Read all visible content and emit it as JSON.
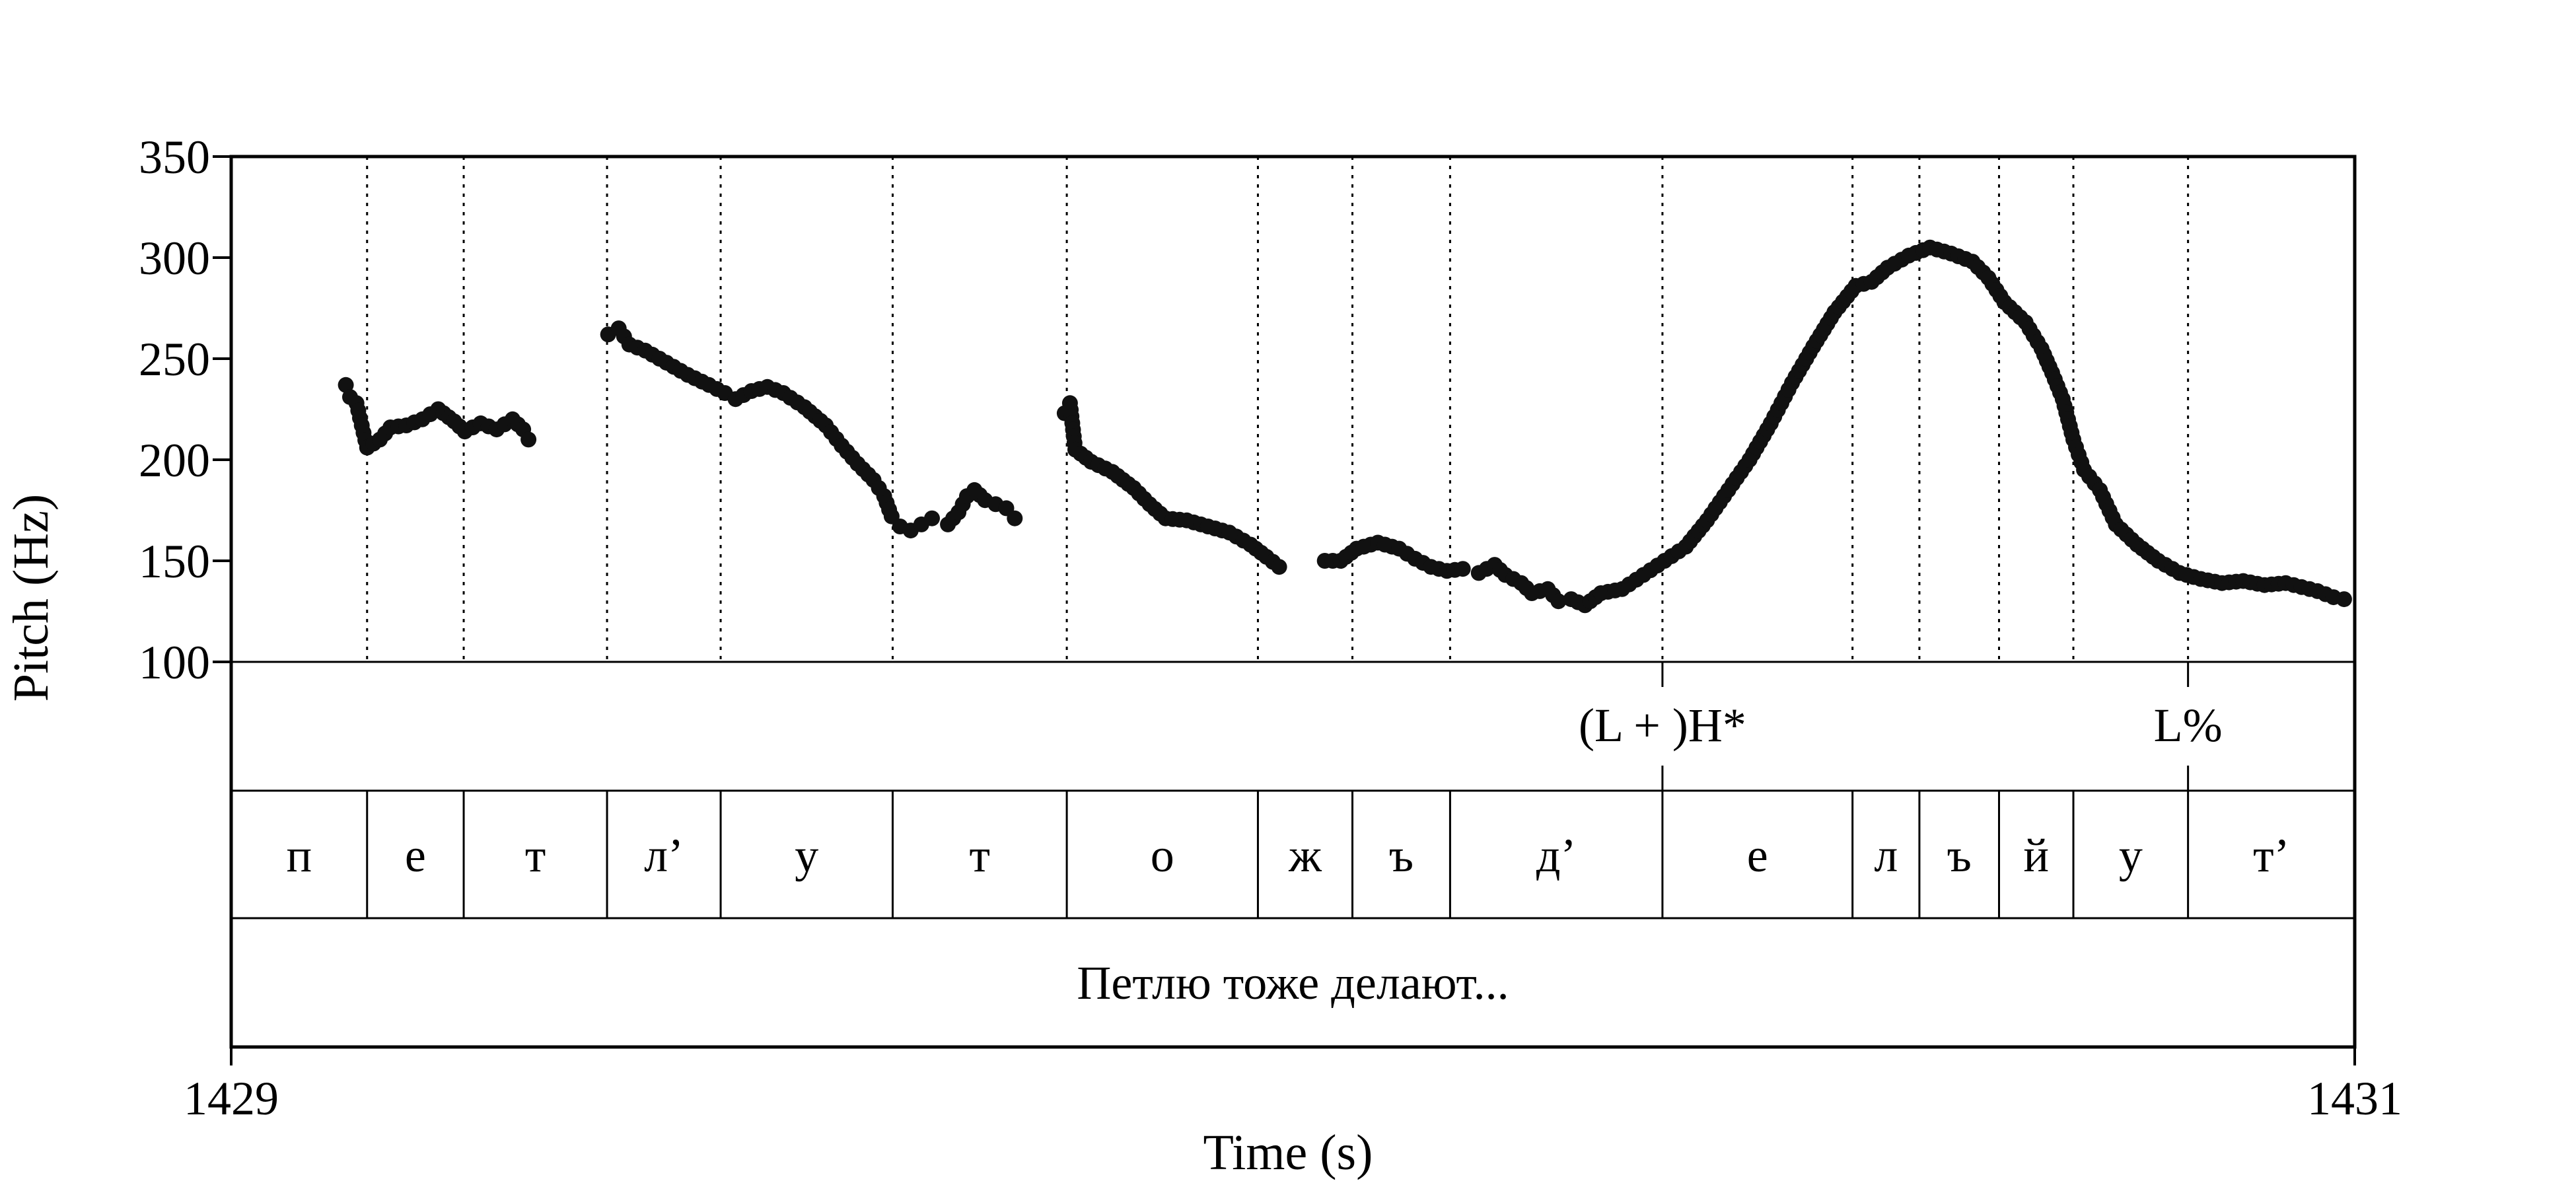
{
  "chart_data": {
    "type": "scatter",
    "xlabel": "Time (s)",
    "ylabel": "Pitch (Hz)",
    "xlim": [
      1429,
      1431
    ],
    "ylim": [
      100,
      350
    ],
    "x_ticks": [
      "1429",
      "1431"
    ],
    "y_ticks": [
      "100",
      "150",
      "200",
      "250",
      "300",
      "350"
    ],
    "grid": "dotted vertical lines at segment boundaries",
    "pitch_contour": [
      {
        "points": [
          [
            1429.108,
            237
          ],
          [
            1429.112,
            231
          ],
          [
            1429.118,
            228
          ],
          [
            1429.128,
            206
          ],
          [
            1429.14,
            210
          ],
          [
            1429.15,
            216
          ],
          [
            1429.165,
            217
          ],
          [
            1429.18,
            220
          ],
          [
            1429.195,
            225
          ],
          [
            1429.21,
            219
          ],
          [
            1429.22,
            214
          ],
          [
            1429.235,
            218
          ],
          [
            1429.25,
            215
          ],
          [
            1429.265,
            220
          ],
          [
            1429.275,
            215
          ],
          [
            1429.28,
            210
          ]
        ]
      },
      {
        "points": [
          [
            1429.355,
            262
          ],
          [
            1429.365,
            265
          ],
          [
            1429.375,
            257
          ],
          [
            1429.39,
            254
          ],
          [
            1429.41,
            248
          ],
          [
            1429.43,
            242
          ],
          [
            1429.45,
            237
          ],
          [
            1429.465,
            233
          ],
          [
            1429.475,
            230
          ],
          [
            1429.49,
            234
          ],
          [
            1429.505,
            236
          ],
          [
            1429.52,
            233
          ],
          [
            1429.54,
            226
          ],
          [
            1429.56,
            217
          ],
          [
            1429.575,
            207
          ],
          [
            1429.59,
            198
          ],
          [
            1429.605,
            190
          ],
          [
            1429.615,
            182
          ],
          [
            1429.622,
            172
          ],
          [
            1429.63,
            167
          ],
          [
            1429.64,
            165
          ],
          [
            1429.65,
            168
          ],
          [
            1429.66,
            171
          ]
        ]
      },
      {
        "points": [
          [
            1429.675,
            168
          ],
          [
            1429.685,
            174
          ],
          [
            1429.693,
            182
          ],
          [
            1429.7,
            185
          ],
          [
            1429.71,
            180
          ],
          [
            1429.72,
            178
          ],
          [
            1429.73,
            176
          ],
          [
            1429.738,
            171
          ]
        ]
      },
      {
        "points": [
          [
            1429.785,
            223
          ],
          [
            1429.79,
            228
          ],
          [
            1429.795,
            205
          ],
          [
            1429.81,
            199
          ],
          [
            1429.83,
            194
          ],
          [
            1429.85,
            186
          ],
          [
            1429.865,
            178
          ],
          [
            1429.88,
            171
          ],
          [
            1429.9,
            170
          ],
          [
            1429.92,
            167
          ],
          [
            1429.94,
            164
          ],
          [
            1429.96,
            158
          ],
          [
            1429.975,
            152
          ],
          [
            1429.987,
            147
          ]
        ]
      },
      {
        "points": [
          [
            1430.03,
            150
          ],
          [
            1430.045,
            150
          ],
          [
            1430.06,
            156
          ],
          [
            1430.08,
            159
          ],
          [
            1430.1,
            156
          ],
          [
            1430.115,
            151
          ],
          [
            1430.13,
            147
          ],
          [
            1430.145,
            145
          ],
          [
            1430.16,
            146
          ]
        ]
      },
      {
        "points": [
          [
            1430.175,
            144
          ],
          [
            1430.19,
            148
          ],
          [
            1430.2,
            143
          ],
          [
            1430.215,
            139
          ],
          [
            1430.225,
            134
          ],
          [
            1430.24,
            136
          ],
          [
            1430.25,
            130
          ],
          [
            1430.262,
            131
          ],
          [
            1430.275,
            128
          ],
          [
            1430.29,
            134
          ],
          [
            1430.31,
            136
          ],
          [
            1430.33,
            143
          ],
          [
            1430.35,
            150
          ],
          [
            1430.37,
            157
          ],
          [
            1430.39,
            170
          ],
          [
            1430.41,
            185
          ],
          [
            1430.43,
            200
          ],
          [
            1430.45,
            218
          ],
          [
            1430.47,
            238
          ],
          [
            1430.49,
            256
          ],
          [
            1430.51,
            273
          ],
          [
            1430.53,
            286
          ],
          [
            1430.545,
            288
          ],
          [
            1430.56,
            295
          ],
          [
            1430.58,
            301
          ],
          [
            1430.6,
            305
          ],
          [
            1430.62,
            302
          ],
          [
            1430.64,
            298
          ],
          [
            1430.655,
            290
          ],
          [
            1430.67,
            278
          ],
          [
            1430.69,
            268
          ],
          [
            1430.705,
            255
          ],
          [
            1430.715,
            243
          ],
          [
            1430.725,
            230
          ],
          [
            1430.735,
            210
          ],
          [
            1430.745,
            195
          ],
          [
            1430.76,
            185
          ],
          [
            1430.775,
            168
          ],
          [
            1430.795,
            158
          ],
          [
            1430.815,
            150
          ],
          [
            1430.835,
            144
          ],
          [
            1430.855,
            141
          ],
          [
            1430.875,
            139
          ],
          [
            1430.895,
            140
          ],
          [
            1430.915,
            138
          ],
          [
            1430.935,
            139
          ],
          [
            1430.95,
            137
          ],
          [
            1430.965,
            135
          ],
          [
            1430.98,
            132
          ],
          [
            1430.99,
            131
          ]
        ]
      }
    ],
    "boundaries": [
      1429.128,
      1429.219,
      1429.354,
      1429.461,
      1429.623,
      1429.787,
      1429.967,
      1430.056,
      1430.148,
      1430.348,
      1430.527,
      1430.59,
      1430.665,
      1430.735,
      1430.843
    ],
    "tone_marks": [
      {
        "time": 1430.348,
        "label": "(L + )H*"
      },
      {
        "time": 1430.843,
        "label": "L%"
      }
    ],
    "segments": [
      {
        "label": "п",
        "start": 1429.0,
        "end": 1429.128
      },
      {
        "label": "е",
        "start": 1429.128,
        "end": 1429.219
      },
      {
        "label": "т",
        "start": 1429.219,
        "end": 1429.354
      },
      {
        "label": "л’",
        "start": 1429.354,
        "end": 1429.461
      },
      {
        "label": "у",
        "start": 1429.461,
        "end": 1429.623
      },
      {
        "label": "т",
        "start": 1429.623,
        "end": 1429.787
      },
      {
        "label": "о",
        "start": 1429.787,
        "end": 1429.967
      },
      {
        "label": "ж",
        "start": 1429.967,
        "end": 1430.056
      },
      {
        "label": "ъ",
        "start": 1430.056,
        "end": 1430.148
      },
      {
        "label": "д’",
        "start": 1430.148,
        "end": 1430.348
      },
      {
        "label": "е",
        "start": 1430.348,
        "end": 1430.527
      },
      {
        "label": "л",
        "start": 1430.527,
        "end": 1430.59
      },
      {
        "label": "ъ",
        "start": 1430.59,
        "end": 1430.665
      },
      {
        "label": "й",
        "start": 1430.665,
        "end": 1430.735
      },
      {
        "label": "у",
        "start": 1430.735,
        "end": 1430.843
      },
      {
        "label": "т’",
        "start": 1430.843,
        "end": 1431.0
      }
    ],
    "utterance": "Петлю тоже делают..."
  }
}
